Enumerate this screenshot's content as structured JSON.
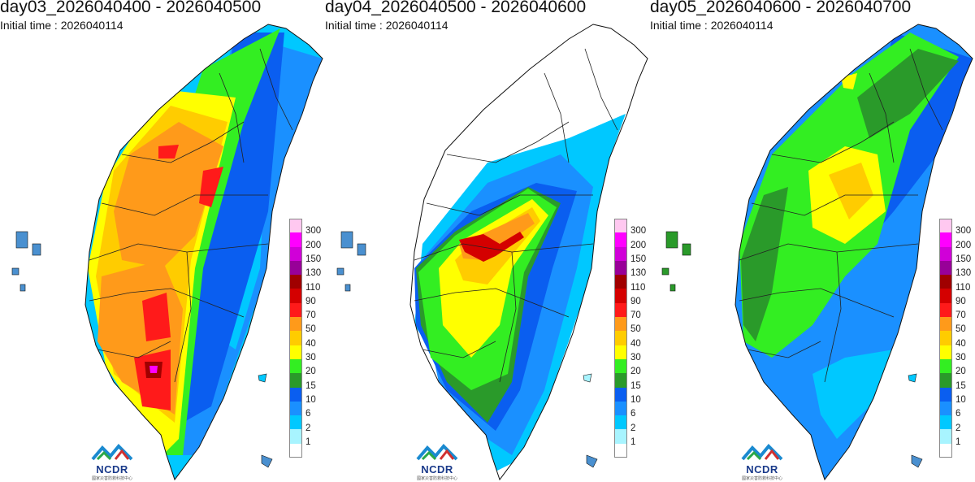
{
  "panels": [
    {
      "title": "day03_2026040400 - 2026040500",
      "initial_time": "Initial time : 2026040114",
      "scheme": "heavy-south"
    },
    {
      "title": "day04_2026040500 - 2026040600",
      "initial_time": "Initial time : 2026040114",
      "scheme": "central-peak"
    },
    {
      "title": "day05_2026040600 - 2026040700",
      "initial_time": "Initial time : 2026040114",
      "scheme": "widespread-moderate"
    }
  ],
  "legend": {
    "labels": [
      "300",
      "200",
      "150",
      "130",
      "110",
      "90",
      "70",
      "50",
      "40",
      "30",
      "20",
      "15",
      "10",
      "6",
      "2",
      "1"
    ],
    "colors": [
      "#ffc8f0",
      "#ff00ff",
      "#d000d8",
      "#980098",
      "#a00000",
      "#d40000",
      "#ff1a1a",
      "#ff9a1a",
      "#ffcc00",
      "#ffff00",
      "#33ee22",
      "#2a9a2a",
      "#0a5ef0",
      "#1a90ff",
      "#00c8ff",
      "#a8f4ff",
      "#ffffff"
    ]
  },
  "logo": {
    "text": "NCDR",
    "subtext": "國家災害防救科技中心"
  }
}
